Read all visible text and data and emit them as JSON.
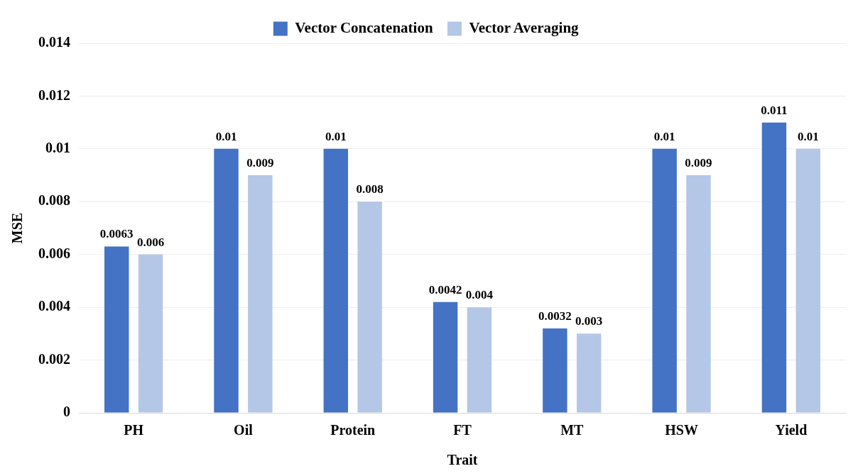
{
  "chart_data": {
    "type": "bar",
    "xlabel": "Trait",
    "ylabel": "MSE",
    "categories": [
      "PH",
      "Oil",
      "Protein",
      "FT",
      "MT",
      "HSW",
      "Yield"
    ],
    "series": [
      {
        "name": "Vector Concatenation",
        "color": "#4472c4",
        "values": [
          0.0063,
          0.01,
          0.01,
          0.0042,
          0.0032,
          0.01,
          0.011
        ]
      },
      {
        "name": "Vector Averaging",
        "color": "#b4c7e7",
        "values": [
          0.006,
          0.009,
          0.008,
          0.004,
          0.003,
          0.009,
          0.01
        ]
      }
    ],
    "ylim": [
      0,
      0.014
    ],
    "yticks": [
      0,
      0.002,
      0.004,
      0.006,
      0.008,
      0.01,
      0.012,
      0.014
    ],
    "grid": "y",
    "legend": "top",
    "data_labels": true
  }
}
